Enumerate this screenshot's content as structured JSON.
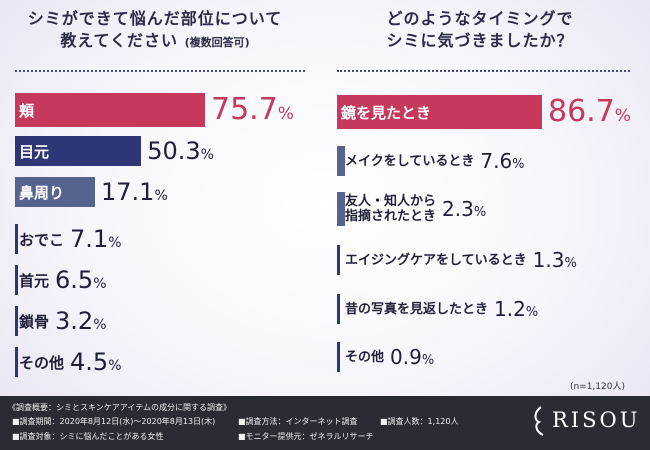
{
  "titles": {
    "left_line1": "シミができて悩んだ部位について",
    "left_line2": "教えてください",
    "left_sub": "(複数回答可)",
    "right_line1": "どのようなタイミングで",
    "right_line2": "シミに気づきましたか？"
  },
  "chart_data": [
    {
      "type": "bar",
      "title": "シミができて悩んだ部位について教えてください(複数回答可)",
      "unit": "%",
      "categories": [
        "頬",
        "目元",
        "鼻周り",
        "おでこ",
        "首元",
        "鎖骨",
        "その他"
      ],
      "values": [
        75.7,
        50.3,
        17.1,
        7.1,
        6.5,
        3.2,
        4.5
      ],
      "colors": [
        "#c7395c",
        "#2f3675",
        "#56638f",
        "#ececf1",
        "#ececf1",
        "#ececf1",
        "#ececf1"
      ]
    },
    {
      "type": "bar",
      "title": "どのようなタイミングでシミに気づきましたか？",
      "unit": "%",
      "categories": [
        "鏡を見たとき",
        "メイクをしているとき",
        "友人・知人から指摘されたとき",
        "エイジングケアをしているとき",
        "昔の写真を見返したとき",
        "その他"
      ],
      "label_lines": [
        [
          "鏡を見たとき"
        ],
        [
          "メイクをしているとき"
        ],
        [
          "友人・知人から",
          "指摘されたとき"
        ],
        [
          "エイジングケアをしているとき"
        ],
        [
          "昔の写真を見返したとき"
        ],
        [
          "その他"
        ]
      ],
      "values": [
        86.7,
        7.6,
        2.3,
        1.3,
        1.2,
        0.9
      ],
      "colors": [
        "#c7395c",
        "#56638f",
        "#56638f",
        "#ececf1",
        "#ececf1",
        "#ececf1"
      ]
    }
  ],
  "sample_size": "(n=1,120人)",
  "footer": {
    "overview_label": "《調査概要：シミとスキンケアアイテムの成分に関する調査》",
    "period": "■調査期間：2020年8月12日(水)～2020年8月13日(木)",
    "method": "■調査方法：インターネット調査",
    "respondents": "■調査人数：1,120人",
    "target": "■調査対象：シミに悩んだことがある女性",
    "provider": "■モニター提供元：ゼネラルリサーチ"
  },
  "brand": {
    "name": "RISOU"
  },
  "colors": {
    "accent_red": "#c7395c",
    "navy": "#2f3675",
    "slate": "#56638f",
    "footer_bg": "#2b2b34"
  }
}
